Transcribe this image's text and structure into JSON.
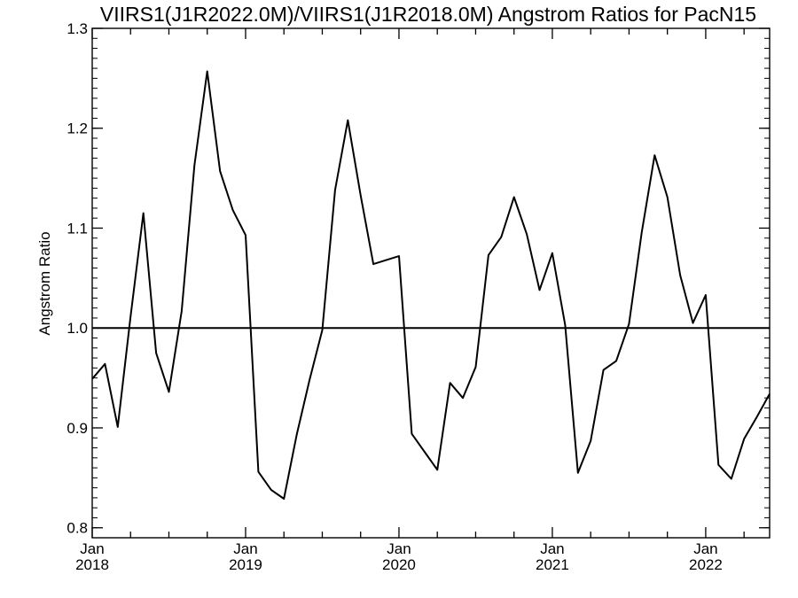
{
  "chart_data": {
    "type": "line",
    "title": "VIIRS1(J1R2022.0M)/VIIRS1(J1R2018.0M)  Angstrom Ratios for PacN15",
    "xlabel": "",
    "ylabel": "Angstrom Ratio",
    "xlim": [
      "2018-01",
      "2022-06"
    ],
    "ylim": [
      0.79,
      1.3
    ],
    "yticks": [
      "0.8",
      "0.9",
      "1.0",
      "1.1",
      "1.2",
      "1.3"
    ],
    "xticks": [
      {
        "month": "Jan",
        "year": "2018"
      },
      {
        "month": "Jan",
        "year": "2019"
      },
      {
        "month": "Jan",
        "year": "2020"
      },
      {
        "month": "Jan",
        "year": "2021"
      },
      {
        "month": "Jan",
        "year": "2022"
      }
    ],
    "reference_line": 1.0,
    "grid": false,
    "series": [
      {
        "x": [
          "2018-01",
          "2018-02",
          "2018-03",
          "2018-04",
          "2018-05",
          "2018-06",
          "2018-07",
          "2018-08",
          "2018-09",
          "2018-10",
          "2018-11",
          "2018-12",
          "2019-01",
          "2019-02",
          "2019-03",
          "2019-04",
          "2019-05",
          "2019-06",
          "2019-07",
          "2019-08",
          "2019-09",
          "2019-10",
          "2019-11",
          "2019-12",
          "2020-01",
          "2020-02",
          "2020-03",
          "2020-04",
          "2020-05",
          "2020-06",
          "2020-07",
          "2020-08",
          "2020-09",
          "2020-10",
          "2020-11",
          "2020-12",
          "2021-01",
          "2021-02",
          "2021-03",
          "2021-04",
          "2021-05",
          "2021-06",
          "2021-07",
          "2021-08",
          "2021-09",
          "2021-10",
          "2021-11",
          "2021-12",
          "2022-01",
          "2022-02",
          "2022-03",
          "2022-04",
          "2022-05",
          "2022-06"
        ],
        "values": [
          0.949,
          0.964,
          0.901,
          1.011,
          1.115,
          0.975,
          0.936,
          1.017,
          1.163,
          1.257,
          1.157,
          1.118,
          1.093,
          0.856,
          0.838,
          0.829,
          0.893,
          0.948,
          0.998,
          1.138,
          1.208,
          1.133,
          1.064,
          1.068,
          1.072,
          0.894,
          0.876,
          0.858,
          0.945,
          0.93,
          0.961,
          1.073,
          1.091,
          1.131,
          1.094,
          1.038,
          1.075,
          1.003,
          0.855,
          0.887,
          0.958,
          0.967,
          1.004,
          1.096,
          1.173,
          1.131,
          1.053,
          1.005,
          1.033,
          0.863,
          0.849,
          0.889,
          0.911,
          0.934
        ]
      }
    ]
  }
}
